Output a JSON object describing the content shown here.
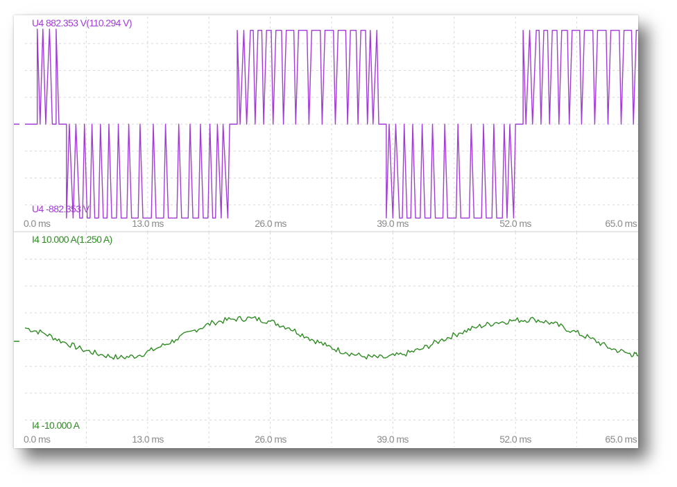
{
  "chart_data": [
    {
      "type": "line",
      "channel": "U4",
      "top_label": "U4   882.353 V(110.294 V)",
      "bottom_label": "U4   -882.353 V",
      "x_ticks": [
        "0.0 ms",
        "13.0 ms",
        "26.0 ms",
        "39.0 ms",
        "52.0 ms",
        "65.0 ms"
      ],
      "xlim": [
        0,
        65
      ],
      "ylim": [
        -882.353,
        882.353
      ],
      "volts_per_div": 110.294,
      "color": "#a23bd6",
      "waveform": "PWM square wave, fundamental period ~27 ms, switching between 0 V and approx. +/-800 V",
      "series": [
        {
          "values": [
            [
              0,
              0
            ],
            [
              1.3,
              0
            ],
            [
              1.3,
              780
            ],
            [
              1.6,
              0
            ],
            [
              1.9,
              780
            ],
            [
              2.2,
              0
            ],
            [
              2.6,
              780
            ],
            [
              2.9,
              0
            ],
            [
              3.3,
              0
            ],
            [
              3.3,
              780
            ],
            [
              3.6,
              0
            ],
            [
              4.4,
              0
            ],
            [
              4.4,
              -770
            ],
            [
              4.7,
              0
            ],
            [
              5.1,
              -770
            ],
            [
              5.4,
              0
            ],
            [
              5.8,
              -770
            ],
            [
              6.1,
              -770
            ],
            [
              6.3,
              0
            ],
            [
              6.6,
              -770
            ],
            [
              6.9,
              -770
            ],
            [
              7.1,
              0
            ],
            [
              7.4,
              -770
            ],
            [
              7.8,
              -770
            ],
            [
              8.0,
              0
            ],
            [
              8.3,
              -770
            ],
            [
              8.7,
              -770
            ],
            [
              8.9,
              0
            ],
            [
              9.2,
              -770
            ],
            [
              9.7,
              -770
            ],
            [
              9.9,
              0
            ],
            [
              10.2,
              -770
            ],
            [
              10.8,
              -770
            ],
            [
              11.0,
              0
            ],
            [
              11.3,
              -770
            ],
            [
              12.0,
              -770
            ],
            [
              12.2,
              0
            ],
            [
              12.5,
              -770
            ],
            [
              13.4,
              -770
            ],
            [
              13.6,
              0
            ],
            [
              13.9,
              -770
            ],
            [
              14.7,
              -770
            ],
            [
              14.9,
              0
            ],
            [
              15.2,
              -770
            ],
            [
              16.1,
              -770
            ],
            [
              16.3,
              0
            ],
            [
              16.6,
              -770
            ],
            [
              17.3,
              -770
            ],
            [
              17.5,
              0
            ],
            [
              17.8,
              -770
            ],
            [
              18.4,
              -770
            ],
            [
              18.6,
              0
            ],
            [
              18.9,
              -770
            ],
            [
              19.4,
              -770
            ],
            [
              19.6,
              0
            ],
            [
              19.9,
              -770
            ],
            [
              20.2,
              -770
            ],
            [
              20.4,
              0
            ],
            [
              20.8,
              -770
            ],
            [
              21.0,
              0
            ],
            [
              21.5,
              -770
            ],
            [
              21.7,
              0
            ],
            [
              22.5,
              0
            ],
            [
              22.5,
              770
            ],
            [
              22.8,
              0
            ],
            [
              23.2,
              770
            ],
            [
              23.5,
              0
            ],
            [
              23.9,
              770
            ],
            [
              24.2,
              770
            ],
            [
              24.4,
              0
            ],
            [
              24.7,
              770
            ],
            [
              25.1,
              770
            ],
            [
              25.3,
              0
            ],
            [
              25.6,
              770
            ],
            [
              26.1,
              770
            ],
            [
              26.3,
              0
            ],
            [
              26.6,
              770
            ],
            [
              27.2,
              770
            ],
            [
              27.4,
              0
            ],
            [
              27.7,
              770
            ],
            [
              28.5,
              770
            ],
            [
              28.7,
              0
            ],
            [
              29.0,
              770
            ],
            [
              29.9,
              770
            ],
            [
              30.1,
              0
            ],
            [
              30.4,
              770
            ],
            [
              31.3,
              770
            ],
            [
              31.5,
              0
            ],
            [
              31.8,
              770
            ],
            [
              32.7,
              770
            ],
            [
              32.9,
              0
            ],
            [
              33.2,
              770
            ],
            [
              34.0,
              770
            ],
            [
              34.2,
              0
            ],
            [
              34.5,
              770
            ],
            [
              35.1,
              770
            ],
            [
              35.3,
              0
            ],
            [
              35.6,
              770
            ],
            [
              36.1,
              770
            ],
            [
              36.3,
              0
            ],
            [
              36.6,
              770
            ],
            [
              36.9,
              0
            ],
            [
              37.3,
              770
            ],
            [
              37.5,
              0
            ],
            [
              38.3,
              0
            ],
            [
              38.3,
              -770
            ],
            [
              38.6,
              0
            ],
            [
              39.0,
              -770
            ],
            [
              39.3,
              0
            ],
            [
              39.7,
              -770
            ],
            [
              40.0,
              -770
            ],
            [
              40.2,
              0
            ],
            [
              40.5,
              -770
            ],
            [
              40.9,
              -770
            ],
            [
              41.1,
              0
            ],
            [
              41.4,
              -770
            ],
            [
              41.9,
              -770
            ],
            [
              42.1,
              0
            ],
            [
              42.4,
              -770
            ],
            [
              43.0,
              -770
            ],
            [
              43.2,
              0
            ],
            [
              43.5,
              -770
            ],
            [
              44.3,
              -770
            ],
            [
              44.5,
              0
            ],
            [
              44.8,
              -770
            ],
            [
              45.7,
              -770
            ],
            [
              45.9,
              0
            ],
            [
              46.2,
              -770
            ],
            [
              47.1,
              -770
            ],
            [
              47.3,
              0
            ],
            [
              47.6,
              -770
            ],
            [
              48.4,
              -770
            ],
            [
              48.6,
              0
            ],
            [
              48.9,
              -770
            ],
            [
              49.5,
              -770
            ],
            [
              49.7,
              0
            ],
            [
              50.0,
              -770
            ],
            [
              50.6,
              -770
            ],
            [
              50.8,
              0
            ],
            [
              51.1,
              -770
            ],
            [
              51.4,
              0
            ],
            [
              51.8,
              -770
            ],
            [
              52.0,
              0
            ],
            [
              52.8,
              0
            ],
            [
              52.8,
              770
            ],
            [
              53.1,
              0
            ],
            [
              53.5,
              770
            ],
            [
              53.8,
              0
            ],
            [
              54.2,
              770
            ],
            [
              54.5,
              770
            ],
            [
              54.7,
              0
            ],
            [
              55.0,
              770
            ],
            [
              55.4,
              770
            ],
            [
              55.6,
              0
            ],
            [
              55.9,
              770
            ],
            [
              56.4,
              770
            ],
            [
              56.6,
              0
            ],
            [
              56.9,
              770
            ],
            [
              57.5,
              770
            ],
            [
              57.7,
              0
            ],
            [
              58.0,
              770
            ],
            [
              58.8,
              770
            ],
            [
              59.0,
              0
            ],
            [
              59.3,
              770
            ],
            [
              60.2,
              770
            ],
            [
              60.4,
              0
            ],
            [
              60.7,
              770
            ],
            [
              61.6,
              770
            ],
            [
              61.8,
              0
            ],
            [
              62.1,
              770
            ],
            [
              63.0,
              770
            ],
            [
              63.2,
              0
            ],
            [
              63.5,
              770
            ],
            [
              64.3,
              770
            ],
            [
              64.5,
              0
            ],
            [
              64.8,
              770
            ],
            [
              65.0,
              770
            ]
          ]
        }
      ]
    },
    {
      "type": "line",
      "channel": "I4",
      "top_label": "I4   10.000 A(1.250 A)",
      "bottom_label": "I4   -10.000 A",
      "x_ticks": [
        "0.0 ms",
        "13.0 ms",
        "26.0 ms",
        "39.0 ms",
        "52.0 ms",
        "65.0 ms"
      ],
      "xlim": [
        0,
        65
      ],
      "ylim": [
        -10,
        10
      ],
      "amps_per_div": 1.25,
      "color": "#2e8b22",
      "waveform": "noisy sinusoid, amplitude approx. 1.5 A, offset approx. 0.2 A, period approx. 27 ms",
      "series": [
        {
          "values": [
            [
              0,
              1.1
            ],
            [
              2,
              0.6
            ],
            [
              4,
              -0.2
            ],
            [
              6,
              -0.9
            ],
            [
              8,
              -1.4
            ],
            [
              10,
              -1.7
            ],
            [
              12,
              -1.5
            ],
            [
              14,
              -0.8
            ],
            [
              16,
              0.0
            ],
            [
              18,
              0.9
            ],
            [
              20,
              1.6
            ],
            [
              22,
              1.9
            ],
            [
              24,
              2.0
            ],
            [
              26,
              1.7
            ],
            [
              28,
              1.1
            ],
            [
              30,
              0.2
            ],
            [
              32,
              -0.6
            ],
            [
              34,
              -1.2
            ],
            [
              36,
              -1.6
            ],
            [
              38,
              -1.7
            ],
            [
              40,
              -1.4
            ],
            [
              42,
              -0.9
            ],
            [
              44,
              -0.1
            ],
            [
              46,
              0.6
            ],
            [
              48,
              1.2
            ],
            [
              50,
              1.6
            ],
            [
              52,
              1.8
            ],
            [
              54,
              1.9
            ],
            [
              56,
              1.5
            ],
            [
              58,
              0.8
            ],
            [
              60,
              0.1
            ],
            [
              62,
              -0.8
            ],
            [
              64,
              -1.3
            ],
            [
              65,
              -1.5
            ]
          ]
        }
      ]
    }
  ]
}
